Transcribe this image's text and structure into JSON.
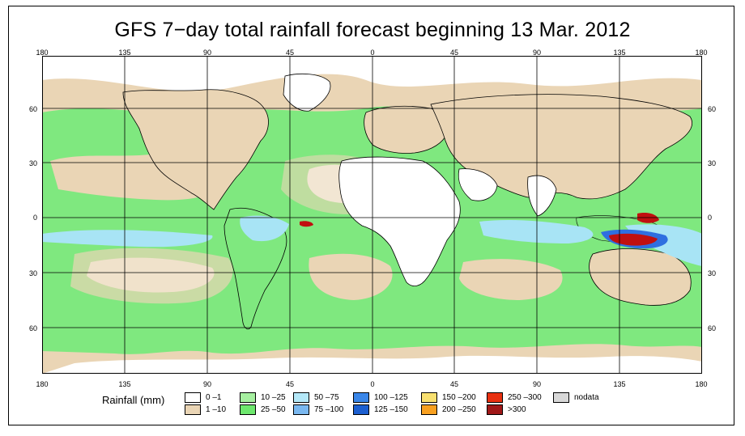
{
  "title": "GFS 7−day total rainfall forecast beginning 13 Mar. 2012",
  "axes": {
    "top": [
      "180",
      "135",
      "90",
      "45",
      "0",
      "45",
      "90",
      "135",
      "180"
    ],
    "bottom": [
      "180",
      "135",
      "90",
      "45",
      "0",
      "45",
      "90",
      "135",
      "180"
    ],
    "left": [
      "60",
      "30",
      "0",
      "30",
      "60"
    ],
    "right": [
      "60",
      "30",
      "0",
      "30",
      "60"
    ]
  },
  "map": {
    "projection": "equirectangular",
    "lat_range": [
      -85,
      85
    ],
    "lon_range": [
      -180,
      180
    ],
    "grid_interval_deg": 45,
    "lat_grid_interval_deg": 30,
    "colors": {
      "ocean_base": "#7fe87f",
      "dry": "#ffffff",
      "light": "#ead5b5",
      "moderate": "#7fe87f",
      "heavy": "#a8e4f5",
      "very_heavy": "#2f6fe0",
      "extreme": "#c01010",
      "grid": "#000000"
    }
  },
  "legend": {
    "title": "Rainfall (mm)",
    "items": [
      {
        "label": "0 –1",
        "color": "#ffffff"
      },
      {
        "label": "1 –10",
        "color": "#ead5b5"
      },
      {
        "label": "10 –25",
        "color": "#a6f0a0"
      },
      {
        "label": "25 –50",
        "color": "#6ee86e"
      },
      {
        "label": "50 –75",
        "color": "#b4e8f8"
      },
      {
        "label": "75 –100",
        "color": "#7ab8f0"
      },
      {
        "label": "100 –125",
        "color": "#3a86e8"
      },
      {
        "label": "125 –150",
        "color": "#1c5fd0"
      },
      {
        "label": "150 –200",
        "color": "#f8e070"
      },
      {
        "label": "200 –250",
        "color": "#f8a020"
      },
      {
        "label": "250 –300",
        "color": "#e83010"
      },
      {
        "label": ">300",
        "color": "#a01818"
      },
      {
        "label": "nodata",
        "color": "#d8d8d8"
      }
    ]
  }
}
